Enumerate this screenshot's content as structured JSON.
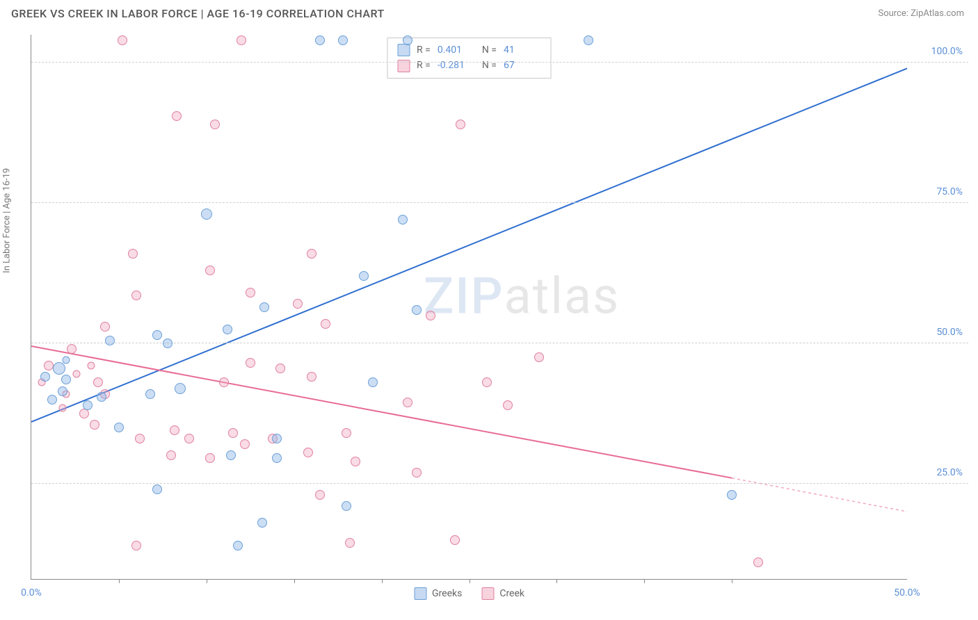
{
  "header": {
    "title": "GREEK VS CREEK IN LABOR FORCE | AGE 16-19 CORRELATION CHART",
    "source": "Source: ZipAtlas.com"
  },
  "chart": {
    "type": "scatter",
    "ylabel": "In Labor Force | Age 16-19",
    "xlim": [
      0,
      50
    ],
    "ylim": [
      8,
      105
    ],
    "xtick_labels": [
      "0.0%",
      "50.0%"
    ],
    "xtick_positions": [
      0,
      50
    ],
    "xtick_minor": [
      5,
      10,
      15,
      20,
      25,
      30,
      35,
      40
    ],
    "ytick_labels": [
      "25.0%",
      "50.0%",
      "75.0%",
      "100.0%"
    ],
    "ytick_positions": [
      25,
      50,
      75,
      100
    ],
    "background_color": "#ffffff",
    "grid_color": "#d0d0d0",
    "axis_color": "#888888",
    "marker_size_main": 16,
    "marker_size_small": 11,
    "series": {
      "greeks": {
        "label": "Greeks",
        "color_fill": "rgba(143,181,230,0.45)",
        "color_stroke": "#6a9fd8",
        "r": "0.401",
        "n": "41",
        "trend": {
          "x1": 0,
          "y1": 36,
          "x2": 50,
          "y2": 99,
          "color": "#2f6fd0",
          "width": 2
        },
        "points": [
          {
            "x": 16.5,
            "y": 104,
            "s": 14
          },
          {
            "x": 17.8,
            "y": 104,
            "s": 14
          },
          {
            "x": 21.5,
            "y": 104,
            "s": 14
          },
          {
            "x": 31.8,
            "y": 104,
            "s": 14
          },
          {
            "x": 10.0,
            "y": 73,
            "s": 16
          },
          {
            "x": 21.2,
            "y": 72,
            "s": 14
          },
          {
            "x": 19.0,
            "y": 62,
            "s": 14
          },
          {
            "x": 13.3,
            "y": 56.5,
            "s": 14
          },
          {
            "x": 22.0,
            "y": 56,
            "s": 14
          },
          {
            "x": 11.2,
            "y": 52.5,
            "s": 14
          },
          {
            "x": 7.2,
            "y": 51.5,
            "s": 14
          },
          {
            "x": 4.5,
            "y": 50.5,
            "s": 14
          },
          {
            "x": 7.8,
            "y": 50,
            "s": 14
          },
          {
            "x": 2.0,
            "y": 47,
            "s": 11
          },
          {
            "x": 1.6,
            "y": 45.5,
            "s": 18
          },
          {
            "x": 0.8,
            "y": 44,
            "s": 14
          },
          {
            "x": 2.0,
            "y": 43.5,
            "s": 14
          },
          {
            "x": 19.5,
            "y": 43,
            "s": 14
          },
          {
            "x": 8.5,
            "y": 42,
            "s": 16
          },
          {
            "x": 1.8,
            "y": 41.5,
            "s": 14
          },
          {
            "x": 1.2,
            "y": 40,
            "s": 14
          },
          {
            "x": 4.0,
            "y": 40.5,
            "s": 14
          },
          {
            "x": 6.8,
            "y": 41,
            "s": 14
          },
          {
            "x": 3.2,
            "y": 39,
            "s": 14
          },
          {
            "x": 5.0,
            "y": 35,
            "s": 14
          },
          {
            "x": 14.0,
            "y": 33,
            "s": 14
          },
          {
            "x": 11.4,
            "y": 30,
            "s": 14
          },
          {
            "x": 14.0,
            "y": 29.5,
            "s": 14
          },
          {
            "x": 7.2,
            "y": 24,
            "s": 14
          },
          {
            "x": 40.0,
            "y": 23,
            "s": 14
          },
          {
            "x": 18.0,
            "y": 21,
            "s": 14
          },
          {
            "x": 13.2,
            "y": 18,
            "s": 14
          },
          {
            "x": 11.8,
            "y": 14,
            "s": 14
          }
        ]
      },
      "creek": {
        "label": "Creek",
        "color_fill": "rgba(240,168,190,0.4)",
        "color_stroke": "#e07fa0",
        "r": "-0.281",
        "n": "67",
        "trend": {
          "x1": 0,
          "y1": 49.5,
          "x2": 40,
          "y2": 26,
          "color": "#e86b95",
          "width": 2
        },
        "trend_dash": {
          "x1": 40,
          "y1": 26,
          "x2": 50,
          "y2": 20,
          "color": "#f0a8be",
          "width": 1.5
        },
        "points": [
          {
            "x": 5.2,
            "y": 104,
            "s": 14
          },
          {
            "x": 12.0,
            "y": 104,
            "s": 14
          },
          {
            "x": 8.3,
            "y": 90.5,
            "s": 14
          },
          {
            "x": 10.5,
            "y": 89,
            "s": 14
          },
          {
            "x": 24.5,
            "y": 89,
            "s": 14
          },
          {
            "x": 5.8,
            "y": 66,
            "s": 14
          },
          {
            "x": 16.0,
            "y": 66,
            "s": 14
          },
          {
            "x": 10.2,
            "y": 63,
            "s": 14
          },
          {
            "x": 12.5,
            "y": 59,
            "s": 14
          },
          {
            "x": 6.0,
            "y": 58.5,
            "s": 14
          },
          {
            "x": 15.2,
            "y": 57,
            "s": 14
          },
          {
            "x": 22.8,
            "y": 55,
            "s": 14
          },
          {
            "x": 16.8,
            "y": 53.5,
            "s": 14
          },
          {
            "x": 4.2,
            "y": 53,
            "s": 14
          },
          {
            "x": 29.0,
            "y": 47.5,
            "s": 14
          },
          {
            "x": 2.3,
            "y": 49,
            "s": 14
          },
          {
            "x": 1.0,
            "y": 46,
            "s": 14
          },
          {
            "x": 3.4,
            "y": 46,
            "s": 11
          },
          {
            "x": 2.6,
            "y": 44.5,
            "s": 11
          },
          {
            "x": 0.6,
            "y": 43,
            "s": 11
          },
          {
            "x": 3.8,
            "y": 43,
            "s": 14
          },
          {
            "x": 12.5,
            "y": 46.5,
            "s": 14
          },
          {
            "x": 14.2,
            "y": 45.5,
            "s": 14
          },
          {
            "x": 16.0,
            "y": 44,
            "s": 14
          },
          {
            "x": 11.0,
            "y": 43,
            "s": 14
          },
          {
            "x": 2.0,
            "y": 41,
            "s": 11
          },
          {
            "x": 4.2,
            "y": 41,
            "s": 14
          },
          {
            "x": 26.0,
            "y": 43,
            "s": 14
          },
          {
            "x": 1.8,
            "y": 38.5,
            "s": 11
          },
          {
            "x": 3.0,
            "y": 37.5,
            "s": 14
          },
          {
            "x": 21.5,
            "y": 39.5,
            "s": 14
          },
          {
            "x": 27.2,
            "y": 39,
            "s": 14
          },
          {
            "x": 3.6,
            "y": 35.5,
            "s": 14
          },
          {
            "x": 8.2,
            "y": 34.5,
            "s": 14
          },
          {
            "x": 11.5,
            "y": 34,
            "s": 14
          },
          {
            "x": 6.2,
            "y": 33,
            "s": 14
          },
          {
            "x": 9.0,
            "y": 33,
            "s": 14
          },
          {
            "x": 12.2,
            "y": 32,
            "s": 14
          },
          {
            "x": 13.8,
            "y": 33,
            "s": 14
          },
          {
            "x": 18.0,
            "y": 34,
            "s": 14
          },
          {
            "x": 15.8,
            "y": 30.5,
            "s": 14
          },
          {
            "x": 8.0,
            "y": 30,
            "s": 14
          },
          {
            "x": 10.2,
            "y": 29.5,
            "s": 14
          },
          {
            "x": 18.5,
            "y": 29,
            "s": 14
          },
          {
            "x": 22.0,
            "y": 27,
            "s": 14
          },
          {
            "x": 16.5,
            "y": 23,
            "s": 14
          },
          {
            "x": 6.0,
            "y": 14,
            "s": 14
          },
          {
            "x": 18.2,
            "y": 14.5,
            "s": 14
          },
          {
            "x": 24.2,
            "y": 15,
            "s": 14
          },
          {
            "x": 41.5,
            "y": 11,
            "s": 14
          }
        ]
      }
    },
    "watermark": {
      "z": "ZIP",
      "rest": "atlas"
    },
    "legend_top_labels": {
      "R": "R =",
      "N": "N ="
    },
    "legend_bottom": [
      {
        "key": "greeks",
        "label": "Greeks"
      },
      {
        "key": "creek",
        "label": "Creek"
      }
    ]
  }
}
